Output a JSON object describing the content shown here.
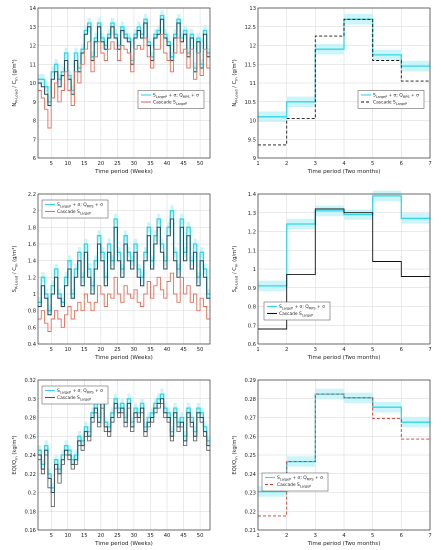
{
  "colors": {
    "cyan": "#33d6e6",
    "cyan_band": "#bff3f8",
    "dark": "#1d4f5c",
    "red": "#e0705a",
    "black": "#111111",
    "grid": "#d6d6d6",
    "frame": "#333333"
  },
  "chart_data": [
    {
      "type": "line",
      "panel": "weekly-1",
      "xlabel": "Time period (Weeks)",
      "ylabel": "N_{R-Load} / C_{in} (g/m³)",
      "xlim": [
        1,
        53
      ],
      "ylim": [
        6,
        14
      ],
      "xticks": [
        5,
        10,
        15,
        20,
        25,
        30,
        35,
        40,
        45,
        50
      ],
      "yticks": [
        6,
        7,
        8,
        9,
        10,
        11,
        12,
        13,
        14
      ],
      "yticklabels": [
        "6",
        "7",
        "8",
        "9",
        "10",
        "11",
        "12",
        "13",
        "14"
      ],
      "legend": {
        "position": "right-middle",
        "entries": [
          "S_{LargeP} + σ; Q_{MPS} + σ",
          "Cascade S_{LargeP}"
        ]
      },
      "series": [
        {
          "name": "S_{LargeP} + σ; Q_{MPS} + σ",
          "style": "step-cyan",
          "values": [
            10.2,
            10.2,
            9.8,
            9.0,
            10.6,
            11.0,
            10.2,
            10.6,
            11.6,
            10.4,
            9.6,
            11.6,
            10.8,
            11.8,
            12.8,
            13.2,
            11.4,
            12.4,
            13.2,
            12.4,
            12.0,
            12.6,
            13.2,
            12.6,
            12.0,
            13.0,
            12.6,
            12.4,
            11.2,
            12.6,
            13.0,
            12.6,
            13.4,
            12.2,
            11.4,
            12.6,
            12.8,
            13.6,
            12.6,
            12.2,
            11.4,
            12.6,
            13.4,
            12.4,
            12.8,
            11.6,
            12.6,
            10.8,
            12.4,
            11.0,
            12.8,
            11.6
          ]
        },
        {
          "name": "S_{LargeP} + σ; Q_{MPS} + σ",
          "style": "step-dark",
          "values": [
            10.0,
            9.8,
            9.4,
            8.8,
            10.2,
            10.6,
            9.8,
            10.4,
            11.2,
            10.2,
            9.4,
            11.2,
            10.6,
            11.6,
            12.6,
            13.0,
            11.2,
            12.2,
            13.0,
            12.2,
            11.8,
            12.4,
            13.0,
            12.4,
            11.8,
            12.8,
            12.4,
            12.2,
            11.0,
            12.4,
            12.8,
            12.4,
            13.2,
            12.0,
            11.2,
            12.4,
            12.6,
            13.4,
            12.4,
            12.0,
            11.2,
            12.4,
            13.2,
            12.2,
            12.6,
            11.4,
            12.4,
            10.6,
            12.2,
            10.8,
            12.6,
            11.4
          ]
        },
        {
          "name": "Cascade S_{LargeP}",
          "style": "step-red",
          "values": [
            9.6,
            9.2,
            8.6,
            7.6,
            9.2,
            10.0,
            9.0,
            9.6,
            10.6,
            9.6,
            8.8,
            10.6,
            10.0,
            11.0,
            11.8,
            12.2,
            10.6,
            11.4,
            12.2,
            11.6,
            11.2,
            11.8,
            12.2,
            11.8,
            11.2,
            12.0,
            11.8,
            11.6,
            10.6,
            11.8,
            12.0,
            11.8,
            12.4,
            11.4,
            10.8,
            11.8,
            11.8,
            12.6,
            11.6,
            11.2,
            10.6,
            11.6,
            12.4,
            11.6,
            11.8,
            10.8,
            11.8,
            10.2,
            11.6,
            10.4,
            11.8,
            10.8
          ]
        }
      ]
    },
    {
      "type": "line",
      "panel": "bimonthly-1",
      "xlabel": "Time period (Two months)",
      "ylabel": "N_{R-Load} / C_{in} (g/m³)",
      "xlim": [
        1,
        7
      ],
      "ylim": [
        9.0,
        13.0
      ],
      "xticks": [
        1,
        2,
        3,
        4,
        5,
        6,
        7
      ],
      "yticks": [
        9.0,
        9.5,
        10.0,
        10.5,
        11.0,
        11.5,
        12.0,
        12.5,
        13.0
      ],
      "yticklabels": [
        "9",
        "9.5",
        "10",
        "10.5",
        "11",
        "11.5",
        "12",
        "12.5",
        "13"
      ],
      "legend": {
        "position": "right-middle",
        "entries": [
          "S_{LargeP} + σ; Q_{MPS} + σ",
          "Cascade S_{LargeP}"
        ]
      },
      "series": [
        {
          "name": "S_{LargeP} + σ; Q_{MPS} + σ",
          "style": "step-cyan",
          "values": [
            10.1,
            10.5,
            11.9,
            12.7,
            11.75,
            11.45
          ]
        },
        {
          "name": "Cascade S_{LargeP}",
          "style": "step-dashed",
          "values": [
            9.35,
            10.05,
            12.25,
            12.7,
            11.6,
            11.05
          ]
        }
      ]
    },
    {
      "type": "line",
      "panel": "weekly-2",
      "xlabel": "Time period (Weeks)",
      "ylabel": "S_{R-Load} / C_{in} (g/m³)",
      "xlim": [
        1,
        53
      ],
      "ylim": [
        0.4,
        2.2
      ],
      "xticks": [
        5,
        10,
        15,
        20,
        25,
        30,
        35,
        40,
        45,
        50
      ],
      "yticks": [
        0.4,
        0.6,
        0.8,
        1.0,
        1.2,
        1.4,
        1.6,
        1.8,
        2.0,
        2.2
      ],
      "yticklabels": [
        "0.4",
        "0.6",
        "0.8",
        "1",
        "1.2",
        "1.4",
        "1.6",
        "1.8",
        "2",
        "2.2"
      ],
      "legend": {
        "position": "top-left",
        "entries": [
          "S_{LargeP} + σ; Q_{MPS} + σ",
          "Cascade S_{LargeP}"
        ]
      },
      "series": [
        {
          "name": "S_{LargeP} + σ; Q_{MPS} + σ",
          "style": "step-cyan",
          "values": [
            0.9,
            1.2,
            1.0,
            0.8,
            1.1,
            1.3,
            1.0,
            0.9,
            1.2,
            1.4,
            1.0,
            1.3,
            1.5,
            1.2,
            1.6,
            1.3,
            1.1,
            1.4,
            1.7,
            1.5,
            1.2,
            1.6,
            1.4,
            1.9,
            1.5,
            1.3,
            1.7,
            1.5,
            1.4,
            1.6,
            1.3,
            1.2,
            1.5,
            1.8,
            1.4,
            1.7,
            1.9,
            1.6,
            1.4,
            1.8,
            2.0,
            1.5,
            1.3,
            1.9,
            1.5,
            1.8,
            1.4,
            1.6,
            1.2,
            1.5,
            1.3,
            1.0
          ]
        },
        {
          "name": "S_{LargeP} + σ; Q_{MPS} + σ",
          "style": "step-dark",
          "values": [
            0.85,
            1.1,
            0.95,
            0.75,
            1.0,
            1.2,
            0.95,
            0.85,
            1.1,
            1.3,
            0.95,
            1.2,
            1.4,
            1.1,
            1.5,
            1.2,
            1.0,
            1.3,
            1.6,
            1.4,
            1.1,
            1.5,
            1.3,
            1.8,
            1.4,
            1.2,
            1.6,
            1.4,
            1.3,
            1.5,
            1.2,
            1.1,
            1.4,
            1.7,
            1.3,
            1.6,
            1.8,
            1.5,
            1.3,
            1.7,
            1.9,
            1.4,
            1.2,
            1.8,
            1.4,
            1.7,
            1.3,
            1.5,
            1.1,
            1.4,
            1.2,
            0.95
          ]
        },
        {
          "name": "Cascade S_{LargeP}",
          "style": "step-red",
          "values": [
            0.7,
            0.8,
            0.65,
            0.55,
            0.7,
            0.8,
            0.7,
            0.6,
            0.75,
            0.85,
            0.7,
            0.8,
            0.9,
            0.8,
            1.0,
            0.9,
            0.8,
            0.9,
            1.1,
            1.0,
            0.85,
            1.0,
            0.95,
            1.2,
            1.0,
            0.9,
            1.1,
            1.0,
            0.95,
            1.05,
            0.9,
            0.85,
            1.0,
            1.15,
            0.95,
            1.1,
            1.2,
            1.05,
            0.95,
            1.15,
            1.25,
            1.0,
            0.9,
            1.2,
            1.0,
            1.1,
            0.9,
            1.0,
            0.8,
            0.95,
            0.85,
            0.7
          ]
        }
      ]
    },
    {
      "type": "line",
      "panel": "bimonthly-2",
      "xlabel": "Time period (Two months)",
      "ylabel": "S_{R-Load} / C_{in} (g/m³)",
      "xlim": [
        1,
        7
      ],
      "ylim": [
        0.6,
        1.4
      ],
      "xticks": [
        1,
        2,
        3,
        4,
        5,
        6,
        7
      ],
      "yticks": [
        0.6,
        0.7,
        0.8,
        0.9,
        1.0,
        1.1,
        1.2,
        1.3,
        1.4
      ],
      "yticklabels": [
        "0.6",
        "0.7",
        "0.8",
        "0.9",
        "1",
        "1.1",
        "1.2",
        "1.3",
        "1.4"
      ],
      "legend": {
        "position": "left-middle",
        "entries": [
          "S_{LargeP} + σ; Q_{MPS} + σ",
          "Cascade S_{LargeP}"
        ]
      },
      "series": [
        {
          "name": "S_{LargeP} + σ; Q_{MPS} + σ",
          "style": "step-cyan",
          "values": [
            0.91,
            1.24,
            1.31,
            1.29,
            1.39,
            1.27
          ]
        },
        {
          "name": "Cascade S_{LargeP}",
          "style": "step-black",
          "values": [
            0.68,
            0.97,
            1.32,
            1.3,
            1.04,
            0.96
          ]
        }
      ]
    },
    {
      "type": "line",
      "panel": "weekly-3",
      "xlabel": "Time period (Weeks)",
      "ylabel": "EQI/Q_{in} (kg/m³)",
      "xlim": [
        1,
        53
      ],
      "ylim": [
        0.16,
        0.32
      ],
      "xticks": [
        5,
        10,
        15,
        20,
        25,
        30,
        35,
        40,
        45,
        50
      ],
      "yticks": [
        0.16,
        0.18,
        0.2,
        0.22,
        0.24,
        0.26,
        0.28,
        0.3,
        0.32
      ],
      "yticklabels": [
        "0.16",
        "0.18",
        "0.2",
        "0.22",
        "0.24",
        "0.26",
        "0.28",
        "0.3",
        "0.32"
      ],
      "legend": {
        "position": "top-left",
        "entries": [
          "S_{LargeP} + σ; Q_{MPS} + σ",
          "Cascade S_{LargeP}"
        ]
      },
      "series": [
        {
          "name": "S_{LargeP} + σ; Q_{MPS} + σ",
          "style": "step-cyan",
          "values": [
            0.245,
            0.23,
            0.25,
            0.22,
            0.205,
            0.235,
            0.225,
            0.24,
            0.25,
            0.245,
            0.235,
            0.24,
            0.26,
            0.255,
            0.27,
            0.265,
            0.285,
            0.295,
            0.28,
            0.3,
            0.275,
            0.27,
            0.285,
            0.3,
            0.29,
            0.295,
            0.28,
            0.3,
            0.275,
            0.29,
            0.285,
            0.295,
            0.27,
            0.28,
            0.285,
            0.295,
            0.3,
            0.305,
            0.29,
            0.285,
            0.265,
            0.29,
            0.275,
            0.28,
            0.26,
            0.29,
            0.28,
            0.265,
            0.29,
            0.285,
            0.27,
            0.255
          ]
        },
        {
          "name": "S_{LargeP} + σ; Q_{MPS} + σ",
          "style": "step-dark",
          "values": [
            0.24,
            0.225,
            0.245,
            0.215,
            0.2,
            0.23,
            0.22,
            0.235,
            0.245,
            0.24,
            0.23,
            0.235,
            0.255,
            0.25,
            0.265,
            0.26,
            0.28,
            0.29,
            0.275,
            0.295,
            0.27,
            0.265,
            0.28,
            0.295,
            0.285,
            0.29,
            0.275,
            0.295,
            0.27,
            0.285,
            0.28,
            0.29,
            0.265,
            0.275,
            0.28,
            0.29,
            0.295,
            0.3,
            0.285,
            0.28,
            0.26,
            0.285,
            0.27,
            0.275,
            0.255,
            0.285,
            0.275,
            0.26,
            0.285,
            0.28,
            0.265,
            0.25
          ]
        },
        {
          "name": "Cascade S_{LargeP}",
          "style": "step-gray",
          "values": [
            0.235,
            0.22,
            0.24,
            0.205,
            0.185,
            0.225,
            0.21,
            0.23,
            0.24,
            0.235,
            0.225,
            0.23,
            0.25,
            0.245,
            0.26,
            0.255,
            0.275,
            0.285,
            0.27,
            0.29,
            0.265,
            0.26,
            0.275,
            0.29,
            0.28,
            0.285,
            0.27,
            0.29,
            0.265,
            0.28,
            0.275,
            0.285,
            0.26,
            0.27,
            0.275,
            0.285,
            0.29,
            0.295,
            0.28,
            0.275,
            0.255,
            0.28,
            0.265,
            0.27,
            0.25,
            0.28,
            0.27,
            0.255,
            0.28,
            0.275,
            0.26,
            0.245
          ]
        }
      ]
    },
    {
      "type": "line",
      "panel": "bimonthly-3",
      "xlabel": "Time period (Two months)",
      "ylabel": "EQI/Q_{in} (kg/m³)",
      "xlim": [
        1,
        7
      ],
      "ylim": [
        0.21,
        0.29
      ],
      "xticks": [
        1,
        2,
        3,
        4,
        5,
        6,
        7
      ],
      "yticks": [
        0.21,
        0.22,
        0.23,
        0.24,
        0.25,
        0.26,
        0.27,
        0.28,
        0.29
      ],
      "yticklabels": [
        "0.21",
        "0.22",
        "0.23",
        "0.24",
        "0.25",
        "0.26",
        "0.27",
        "0.28",
        "0.29"
      ],
      "legend": {
        "position": "bottom-left",
        "entries": [
          "S_{LargeP} + σ; Q_{MPS} + σ",
          "Cascade S_{LargeP}"
        ]
      },
      "series": [
        {
          "name": "S_{LargeP} + σ; Q_{MPS} + σ",
          "style": "step-cyan",
          "values": [
            0.2305,
            0.2465,
            0.2825,
            0.2805,
            0.2755,
            0.2675
          ]
        },
        {
          "name": "Cascade S_{LargeP}",
          "style": "step-dashed-red",
          "values": [
            0.2175,
            0.2465,
            0.2825,
            0.2805,
            0.2695,
            0.2585
          ]
        }
      ]
    }
  ]
}
